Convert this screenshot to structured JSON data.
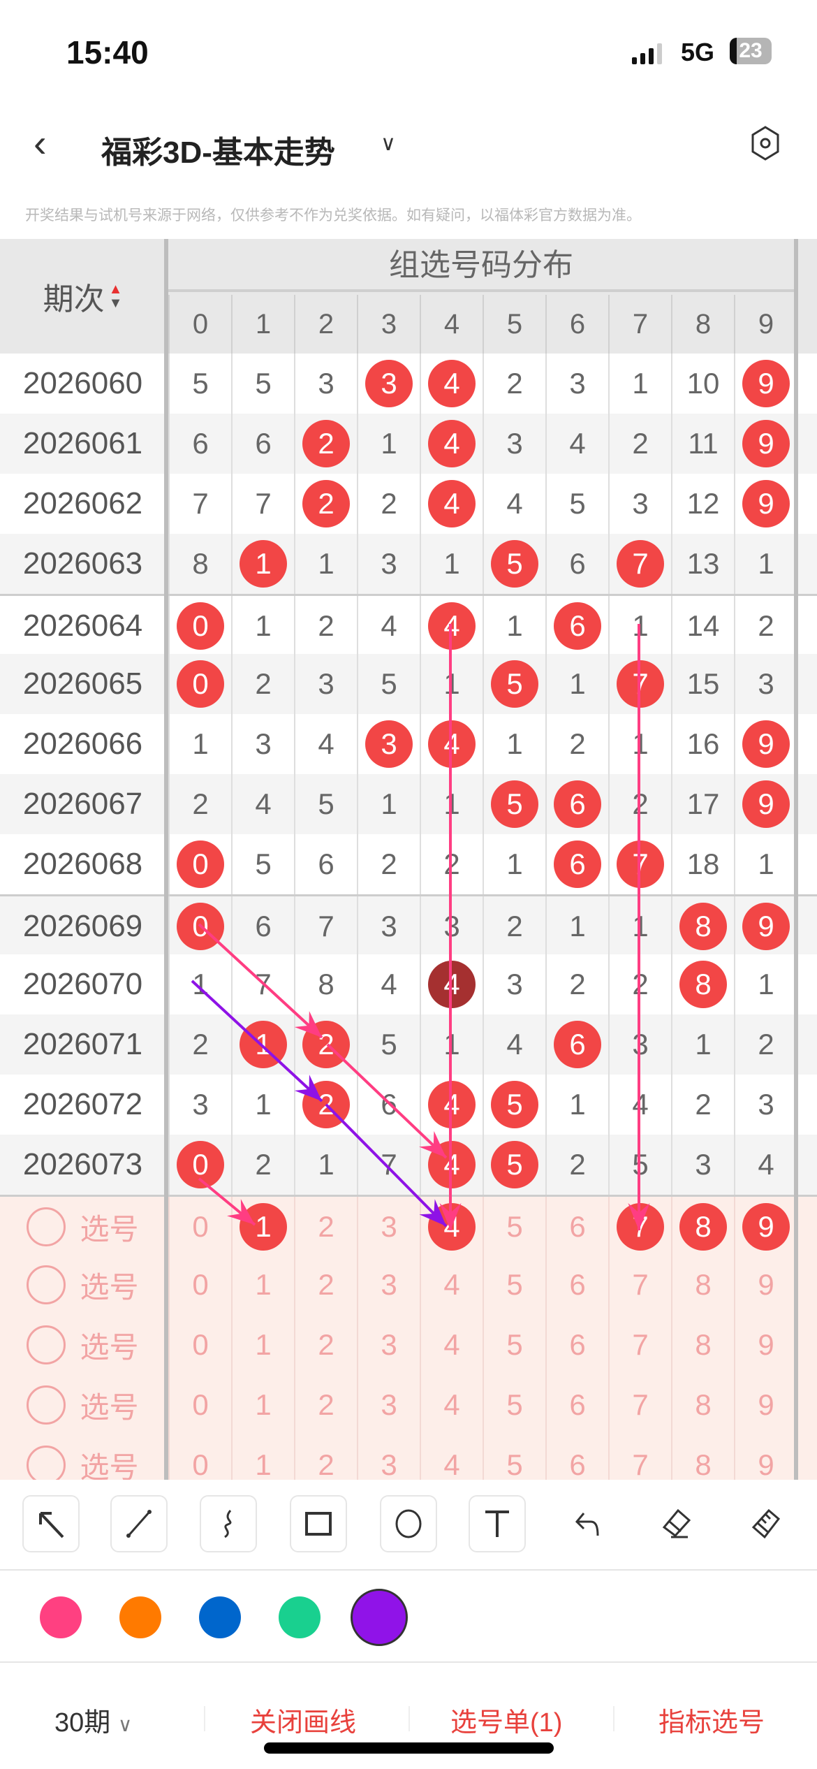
{
  "status_bar": {
    "time": "15:40",
    "network": "5G",
    "battery": "23"
  },
  "nav": {
    "title": "福彩3D-基本走势",
    "back_icon": "chevron-left-icon",
    "dropdown_icon": "chevron-down-icon",
    "settings_icon": "settings-icon"
  },
  "disclaimer": "开奖结果与试机号来源于网络，仅供参考不作为兑奖依据。如有疑问，以福体彩官方数据为准。",
  "table": {
    "period_header": "期次",
    "group_header": "组选号码分布",
    "digits": [
      "0",
      "1",
      "2",
      "3",
      "4",
      "5",
      "6",
      "7",
      "8",
      "9"
    ],
    "rows": [
      {
        "period": "2026060",
        "values": [
          "5",
          "5",
          "3",
          "3",
          "4",
          "2",
          "3",
          "1",
          "10",
          "9"
        ],
        "hits": [
          3,
          4,
          9
        ],
        "dark": []
      },
      {
        "period": "2026061",
        "values": [
          "6",
          "6",
          "2",
          "1",
          "4",
          "3",
          "4",
          "2",
          "11",
          "9"
        ],
        "hits": [
          2,
          4,
          9
        ],
        "dark": []
      },
      {
        "period": "2026062",
        "values": [
          "7",
          "7",
          "2",
          "2",
          "4",
          "4",
          "5",
          "3",
          "12",
          "9"
        ],
        "hits": [
          2,
          4,
          9
        ],
        "dark": []
      },
      {
        "period": "2026063",
        "values": [
          "8",
          "1",
          "1",
          "3",
          "1",
          "5",
          "6",
          "7",
          "13",
          "1"
        ],
        "hits": [
          1,
          5,
          7
        ],
        "dark": []
      },
      {
        "period": "2026064",
        "values": [
          "0",
          "1",
          "2",
          "4",
          "4",
          "1",
          "6",
          "1",
          "14",
          "2"
        ],
        "hits": [
          0,
          4,
          6
        ],
        "dark": []
      },
      {
        "period": "2026065",
        "values": [
          "0",
          "2",
          "3",
          "5",
          "1",
          "5",
          "1",
          "7",
          "15",
          "3"
        ],
        "hits": [
          0,
          5,
          7
        ],
        "dark": []
      },
      {
        "period": "2026066",
        "values": [
          "1",
          "3",
          "4",
          "3",
          "4",
          "1",
          "2",
          "1",
          "16",
          "9"
        ],
        "hits": [
          3,
          4,
          9
        ],
        "dark": []
      },
      {
        "period": "2026067",
        "values": [
          "2",
          "4",
          "5",
          "1",
          "1",
          "5",
          "6",
          "2",
          "17",
          "9"
        ],
        "hits": [
          5,
          6,
          9
        ],
        "dark": []
      },
      {
        "period": "2026068",
        "values": [
          "0",
          "5",
          "6",
          "2",
          "2",
          "1",
          "6",
          "7",
          "18",
          "1"
        ],
        "hits": [
          0,
          6,
          7
        ],
        "dark": []
      },
      {
        "period": "2026069",
        "values": [
          "0",
          "6",
          "7",
          "3",
          "3",
          "2",
          "1",
          "1",
          "8",
          "9"
        ],
        "hits": [
          0,
          8,
          9
        ],
        "dark": []
      },
      {
        "period": "2026070",
        "values": [
          "1",
          "7",
          "8",
          "4",
          "4",
          "3",
          "2",
          "2",
          "8",
          "1"
        ],
        "hits": [
          4,
          8
        ],
        "dark": [
          4
        ]
      },
      {
        "period": "2026071",
        "values": [
          "2",
          "1",
          "2",
          "5",
          "1",
          "4",
          "6",
          "3",
          "1",
          "2"
        ],
        "hits": [
          1,
          2,
          6
        ],
        "dark": []
      },
      {
        "period": "2026072",
        "values": [
          "3",
          "1",
          "2",
          "6",
          "4",
          "5",
          "1",
          "4",
          "2",
          "3"
        ],
        "hits": [
          2,
          4,
          5
        ],
        "dark": []
      },
      {
        "period": "2026073",
        "values": [
          "0",
          "2",
          "1",
          "7",
          "4",
          "5",
          "2",
          "5",
          "3",
          "4"
        ],
        "hits": [
          0,
          4,
          5
        ],
        "dark": []
      }
    ],
    "pick_rows": [
      {
        "label": "选号",
        "values": [
          "0",
          "1",
          "2",
          "3",
          "4",
          "5",
          "6",
          "7",
          "8",
          "9"
        ],
        "hits": [
          1,
          4,
          7,
          8,
          9
        ]
      },
      {
        "label": "选号",
        "values": [
          "0",
          "1",
          "2",
          "3",
          "4",
          "5",
          "6",
          "7",
          "8",
          "9"
        ],
        "hits": []
      },
      {
        "label": "选号",
        "values": [
          "0",
          "1",
          "2",
          "3",
          "4",
          "5",
          "6",
          "7",
          "8",
          "9"
        ],
        "hits": []
      },
      {
        "label": "选号",
        "values": [
          "0",
          "1",
          "2",
          "3",
          "4",
          "5",
          "6",
          "7",
          "8",
          "9"
        ],
        "hits": []
      },
      {
        "label": "选号",
        "values": [
          "0",
          "1",
          "2",
          "3",
          "4",
          "5",
          "6",
          "7",
          "8",
          "9"
        ],
        "hits": []
      }
    ]
  },
  "toolbar": {
    "tools": [
      "arrow-icon",
      "line-icon",
      "freehand-icon",
      "rectangle-icon",
      "circle-icon",
      "text-icon",
      "undo-icon",
      "eraser-icon",
      "clear-icon"
    ]
  },
  "palette": {
    "colors": [
      "#ff4081",
      "#ff7a00",
      "#0066cc",
      "#19d08f",
      "#9013e8"
    ],
    "selected": "#9013e8"
  },
  "drawing_colors": {
    "pink": "#ff3d82",
    "purple": "#8e12e6",
    "hit": "#f24646",
    "hit_dark": "#a53030"
  },
  "bottom_bar": {
    "periods": "30期",
    "close_drawing": "关闭画线",
    "pick_list": "选号单(1)",
    "indicator_pick": "指标选号",
    "accent": "#e8413c"
  }
}
